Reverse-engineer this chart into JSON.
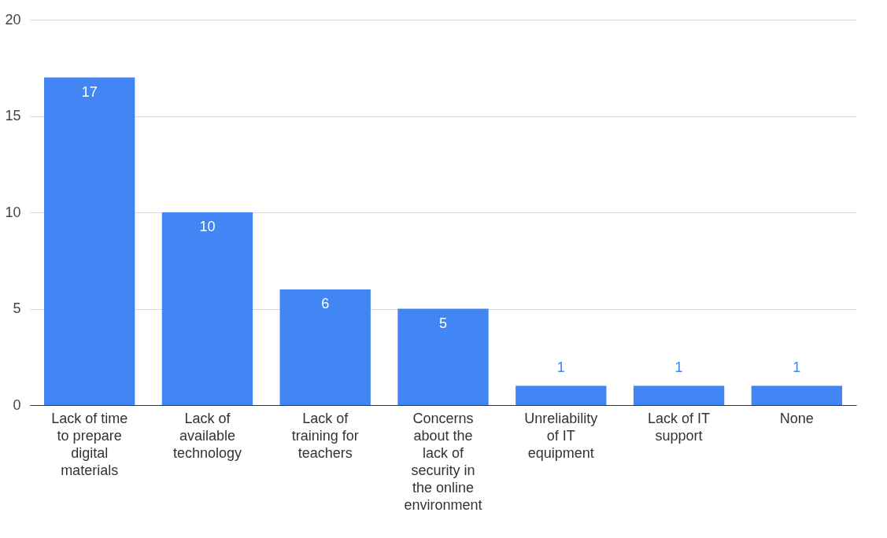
{
  "chart_data": {
    "type": "bar",
    "categories": [
      "Lack of time to prepare digital materials",
      "Lack of available technology",
      "Lack of training for teachers",
      "Concerns about the lack of security in the online environment",
      "Unreliability of IT equipment",
      "Lack of IT support",
      "None"
    ],
    "values": [
      17,
      10,
      6,
      5,
      1,
      1,
      1
    ],
    "color": "#4285f4",
    "ylim": [
      0,
      20
    ],
    "yticks": [
      0,
      5,
      10,
      15,
      20
    ],
    "grid": "y",
    "data_labels": true
  }
}
